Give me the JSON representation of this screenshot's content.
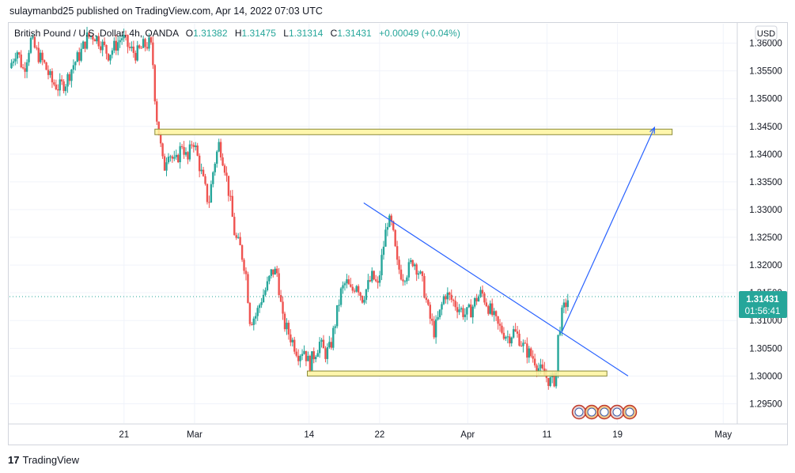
{
  "header": {
    "published_line": "sulaymanbd25 published on TradingView.com, Apr 14, 2022 07:03 UTC"
  },
  "legend": {
    "symbol": "British Pound / U.S. Dollar, 4h, OANDA",
    "open_label": "O",
    "open": "1.31382",
    "high_label": "H",
    "high": "1.31475",
    "low_label": "L",
    "low": "1.31314",
    "close_label": "C",
    "close": "1.31431",
    "change": "+0.00049 (+0.04%)"
  },
  "price_badge": {
    "price": "1.31431",
    "countdown": "01:56:41"
  },
  "currency_button": "USD",
  "footer": {
    "logo": "17",
    "brand": "TradingView"
  },
  "colors": {
    "up": "#26a69a",
    "down": "#ef5350",
    "trend": "#2962ff",
    "zone_fill": "#fff59d",
    "zone_border": "#8a8a3a",
    "badge": "#26a69a"
  },
  "chart_data": {
    "type": "candlestick",
    "y_ticks": [
      "1.29500",
      "1.30000",
      "1.30500",
      "1.31000",
      "1.31500",
      "1.32000",
      "1.32500",
      "1.33000",
      "1.33500",
      "1.34000",
      "1.34500",
      "1.35000",
      "1.35500",
      "1.36000"
    ],
    "x_ticks": [
      {
        "label": "21",
        "t": 13
      },
      {
        "label": "Mar",
        "t": 21
      },
      {
        "label": "14",
        "t": 34
      },
      {
        "label": "22",
        "t": 42
      },
      {
        "label": "Apr",
        "t": 52
      },
      {
        "label": "11",
        "t": 61
      },
      {
        "label": "19",
        "t": 69
      },
      {
        "label": "May",
        "t": 81
      }
    ],
    "ylim": [
      1.2915,
      1.3635
    ],
    "xlim": [
      0,
      82.5
    ],
    "last_price": 1.31431,
    "close_path": [
      [
        0,
        1.3555
      ],
      [
        0.8,
        1.359
      ],
      [
        1.6,
        1.355
      ],
      [
        2.4,
        1.3605
      ],
      [
        3.2,
        1.358
      ],
      [
        4,
        1.356
      ],
      [
        4.8,
        1.353
      ],
      [
        5.6,
        1.352
      ],
      [
        6.4,
        1.353
      ],
      [
        7.2,
        1.356
      ],
      [
        8,
        1.358
      ],
      [
        8.8,
        1.361
      ],
      [
        9.6,
        1.3615
      ],
      [
        10.4,
        1.36
      ],
      [
        11.2,
        1.358
      ],
      [
        12,
        1.3595
      ],
      [
        12.8,
        1.3612
      ],
      [
        13.6,
        1.359
      ],
      [
        14.4,
        1.358
      ],
      [
        15.2,
        1.3595
      ],
      [
        16,
        1.36
      ],
      [
        16.3,
        1.356
      ],
      [
        16.6,
        1.348
      ],
      [
        17.1,
        1.342
      ],
      [
        17.5,
        1.337
      ],
      [
        18,
        1.341
      ],
      [
        18.8,
        1.338
      ],
      [
        19.6,
        1.342
      ],
      [
        20.2,
        1.3385
      ],
      [
        20.8,
        1.343
      ],
      [
        21.4,
        1.339
      ],
      [
        22,
        1.335
      ],
      [
        22.6,
        1.331
      ],
      [
        23.2,
        1.338
      ],
      [
        23.8,
        1.342
      ],
      [
        24.4,
        1.338
      ],
      [
        25,
        1.332
      ],
      [
        25.6,
        1.325
      ],
      [
        26.2,
        1.323
      ],
      [
        26.8,
        1.319
      ],
      [
        27.3,
        1.31
      ],
      [
        28,
        1.311
      ],
      [
        28.6,
        1.314
      ],
      [
        29.2,
        1.316
      ],
      [
        29.8,
        1.319
      ],
      [
        30.4,
        1.3185
      ],
      [
        31,
        1.31
      ],
      [
        31.6,
        1.308
      ],
      [
        32.2,
        1.306
      ],
      [
        32.8,
        1.304
      ],
      [
        33.4,
        1.305
      ],
      [
        34,
        1.302
      ],
      [
        34.6,
        1.304
      ],
      [
        35.2,
        1.306
      ],
      [
        35.8,
        1.304
      ],
      [
        36.4,
        1.305
      ],
      [
        37,
        1.31
      ],
      [
        37.6,
        1.315
      ],
      [
        38.2,
        1.317
      ],
      [
        38.8,
        1.315
      ],
      [
        39.4,
        1.317
      ],
      [
        40,
        1.314
      ],
      [
        40.6,
        1.316
      ],
      [
        41.2,
        1.318
      ],
      [
        41.8,
        1.316
      ],
      [
        42.4,
        1.323
      ],
      [
        42.9,
        1.328
      ],
      [
        43.4,
        1.327
      ],
      [
        44,
        1.32
      ],
      [
        44.6,
        1.318
      ],
      [
        45.2,
        1.319
      ],
      [
        45.8,
        1.321
      ],
      [
        46.4,
        1.319
      ],
      [
        47,
        1.316
      ],
      [
        47.6,
        1.311
      ],
      [
        48.2,
        1.308
      ],
      [
        48.8,
        1.311
      ],
      [
        49.4,
        1.315
      ],
      [
        50,
        1.314
      ],
      [
        50.6,
        1.313
      ],
      [
        51.2,
        1.312
      ],
      [
        51.8,
        1.311
      ],
      [
        52.4,
        1.312
      ],
      [
        53,
        1.314
      ],
      [
        53.6,
        1.315
      ],
      [
        54.2,
        1.313
      ],
      [
        54.8,
        1.311
      ],
      [
        55.4,
        1.309
      ],
      [
        56,
        1.308
      ],
      [
        56.6,
        1.307
      ],
      [
        57.2,
        1.308
      ],
      [
        57.8,
        1.307
      ],
      [
        58.4,
        1.305
      ],
      [
        59,
        1.304
      ],
      [
        59.6,
        1.303
      ],
      [
        60.2,
        1.301
      ],
      [
        60.8,
        1.3
      ],
      [
        61.4,
        1.299
      ],
      [
        62,
        1.2995
      ],
      [
        62.3,
        1.308
      ],
      [
        62.7,
        1.311
      ],
      [
        63.1,
        1.313
      ],
      [
        63.5,
        1.31431
      ]
    ],
    "zones": [
      {
        "x0": 16.5,
        "x1": 75.2,
        "y0": 1.3435,
        "y1": 1.3445
      },
      {
        "x0": 33.8,
        "x1": 67.8,
        "y0": 1.3,
        "y1": 1.3009
      }
    ],
    "trendlines": [
      {
        "x0": 40.2,
        "y0": 1.3312,
        "x1": 70.2,
        "y1": 1.3
      },
      {
        "x0": 62.7,
        "y0": 1.308,
        "x1": 73.2,
        "y1": 1.3448
      }
    ],
    "arrow_head": {
      "x": 73.2,
      "y": 1.3448
    }
  }
}
